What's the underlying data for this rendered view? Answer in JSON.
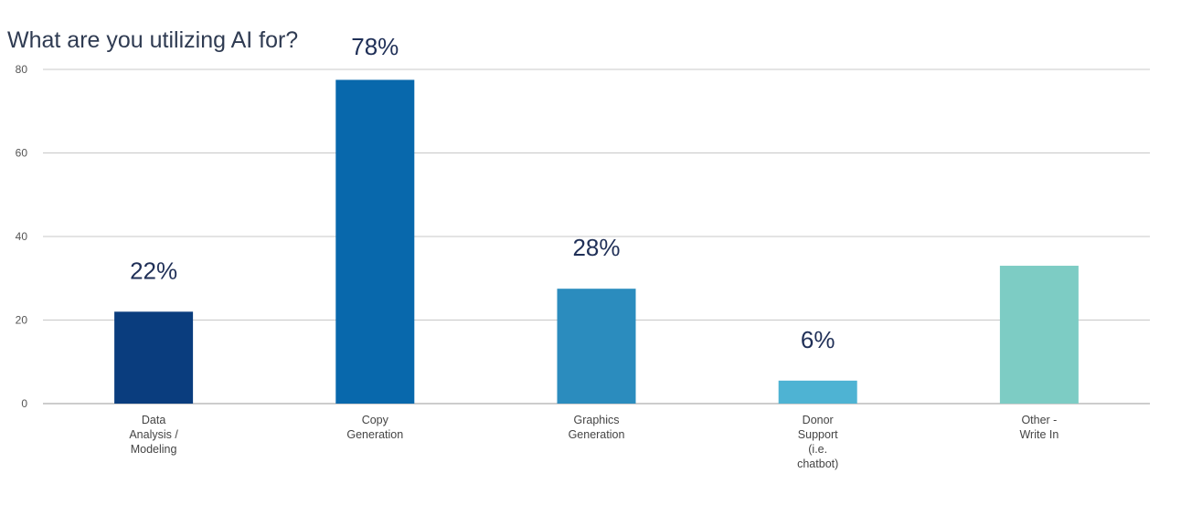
{
  "chart_data": {
    "type": "bar",
    "title": "What are you utilizing AI for?",
    "xlabel": "",
    "ylabel": "",
    "ylim": [
      0,
      80
    ],
    "yticks": [
      0,
      20,
      40,
      60,
      80
    ],
    "grid": true,
    "categories": [
      "Data Analysis / Modeling",
      "Copy Generation",
      "Graphics Generation",
      "Donor Support (i.e. chatbot)",
      "Other - Write In"
    ],
    "category_lines": [
      [
        "Data",
        "Analysis /",
        "Modeling"
      ],
      [
        "Copy",
        "Generation"
      ],
      [
        "Graphics",
        "Generation"
      ],
      [
        "Donor",
        "Support",
        "(i.e.",
        "chatbot)"
      ],
      [
        "Other -",
        "Write In"
      ]
    ],
    "values": [
      22,
      77.5,
      27.5,
      5.5,
      33
    ],
    "data_labels": [
      "22%",
      "78%",
      "28%",
      "6%",
      ""
    ],
    "colors": [
      "#0a3d7e",
      "#0868ac",
      "#2b8cbe",
      "#4eb3d3",
      "#7dccc4"
    ]
  }
}
